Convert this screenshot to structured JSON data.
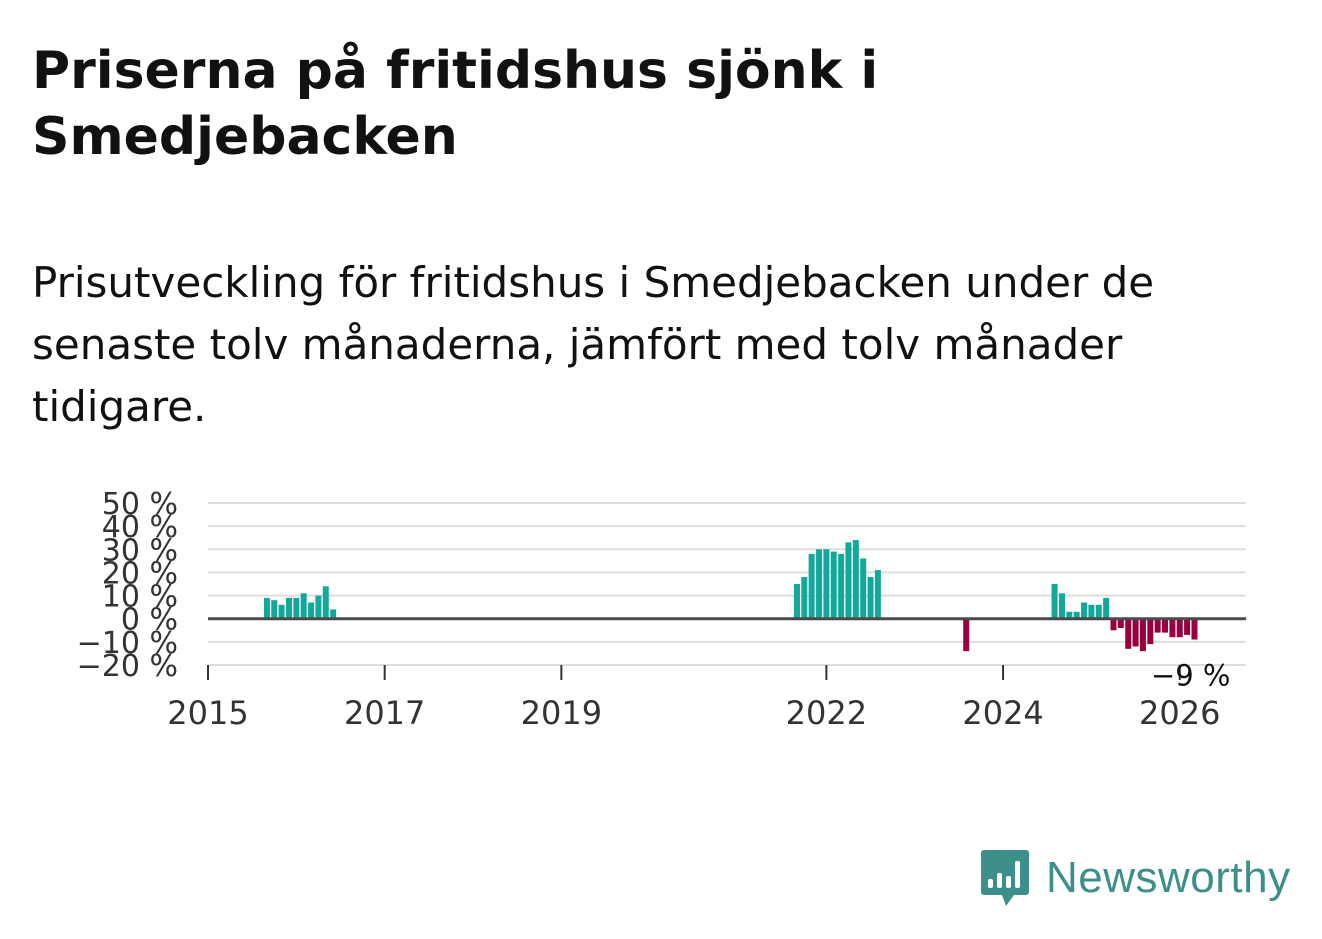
{
  "header": {
    "title": "Priserna på fritidshus sjönk i Smedjebacken",
    "subtitle": "Prisutveckling för fritidshus i Smedjebacken under de senaste tolv månaderna, jämfört med tolv månader tidigare."
  },
  "brand": {
    "name": "Newsworthy"
  },
  "colors": {
    "positive": "#12a89c",
    "negative": "#99003d",
    "zero_line": "#4a4a4a",
    "grid": "#dddddd",
    "brand": "#3d8f89"
  },
  "chart_data": {
    "type": "bar",
    "title": "Priserna på fritidshus sjönk i Smedjebacken",
    "xlabel": "",
    "ylabel": "",
    "ylim": [
      -20,
      50
    ],
    "yticks": [
      50,
      40,
      30,
      20,
      10,
      0,
      -10,
      -20
    ],
    "ytick_labels": [
      "50 %",
      "40 %",
      "30 %",
      "20 %",
      "10 %",
      "0 %",
      "−10 %",
      "−20 %"
    ],
    "xlim": [
      2015.0,
      2026.75
    ],
    "xticks": [
      2015,
      2017,
      2019,
      2022,
      2024,
      2026
    ],
    "xtick_labels": [
      "2015",
      "2017",
      "2019",
      "2022",
      "2024",
      "2026"
    ],
    "bar_width_years": 0.068,
    "series": [
      {
        "name": "Prisutveckling",
        "points": [
          {
            "x": 2015.667,
            "y": 9
          },
          {
            "x": 2015.75,
            "y": 8
          },
          {
            "x": 2015.833,
            "y": 6
          },
          {
            "x": 2015.917,
            "y": 9
          },
          {
            "x": 2016.0,
            "y": 9
          },
          {
            "x": 2016.083,
            "y": 11
          },
          {
            "x": 2016.167,
            "y": 7
          },
          {
            "x": 2016.25,
            "y": 10
          },
          {
            "x": 2016.333,
            "y": 14
          },
          {
            "x": 2016.417,
            "y": 4
          },
          {
            "x": 2021.667,
            "y": 15
          },
          {
            "x": 2021.75,
            "y": 18
          },
          {
            "x": 2021.833,
            "y": 28
          },
          {
            "x": 2021.917,
            "y": 30
          },
          {
            "x": 2022.0,
            "y": 30
          },
          {
            "x": 2022.083,
            "y": 29
          },
          {
            "x": 2022.167,
            "y": 28
          },
          {
            "x": 2022.25,
            "y": 33
          },
          {
            "x": 2022.333,
            "y": 34
          },
          {
            "x": 2022.417,
            "y": 26
          },
          {
            "x": 2022.5,
            "y": 18
          },
          {
            "x": 2022.583,
            "y": 21
          },
          {
            "x": 2023.583,
            "y": -14
          },
          {
            "x": 2024.583,
            "y": 15
          },
          {
            "x": 2024.667,
            "y": 11
          },
          {
            "x": 2024.75,
            "y": 3
          },
          {
            "x": 2024.833,
            "y": 3
          },
          {
            "x": 2024.917,
            "y": 7
          },
          {
            "x": 2025.0,
            "y": 6
          },
          {
            "x": 2025.083,
            "y": 6
          },
          {
            "x": 2025.167,
            "y": 9
          },
          {
            "x": 2025.25,
            "y": -5
          },
          {
            "x": 2025.333,
            "y": -4
          },
          {
            "x": 2025.417,
            "y": -13
          },
          {
            "x": 2025.5,
            "y": -12
          },
          {
            "x": 2025.583,
            "y": -14
          },
          {
            "x": 2025.667,
            "y": -11
          },
          {
            "x": 2025.75,
            "y": -6
          },
          {
            "x": 2025.833,
            "y": -6
          },
          {
            "x": 2025.917,
            "y": -8
          },
          {
            "x": 2026.0,
            "y": -8
          },
          {
            "x": 2026.083,
            "y": -7
          },
          {
            "x": 2026.167,
            "y": -9
          }
        ]
      }
    ],
    "annotations": [
      {
        "x": 2026.167,
        "y": -9,
        "text": "−9 %"
      }
    ],
    "grid": true,
    "legend": "none"
  }
}
